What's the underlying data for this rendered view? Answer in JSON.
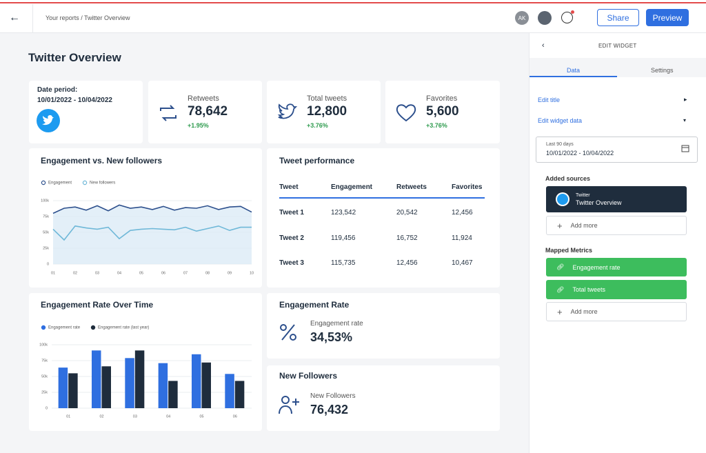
{
  "header": {
    "breadcrumb": "Your reports / Twitter Overview",
    "avatar": "AK",
    "share": "Share",
    "preview": "Preview"
  },
  "title": "Twitter Overview",
  "date_card": {
    "label": "Date period:",
    "range": "10/01/2022 - 10/04/2022"
  },
  "kpis": [
    {
      "label": "Retweets",
      "value": "78,642",
      "change": "+1.95%"
    },
    {
      "label": "Total tweets",
      "value": "12,800",
      "change": "+3.76%"
    },
    {
      "label": "Favorites",
      "value": "5,600",
      "change": "+3.76%"
    }
  ],
  "line_chart": {
    "type": "line",
    "title": "Engagement vs. New followers",
    "categories": [
      "01",
      null,
      "02",
      null,
      "03",
      null,
      "04",
      null,
      "05",
      null,
      "06",
      null,
      "07",
      null,
      "08",
      null,
      "09",
      null,
      "10"
    ],
    "series": [
      {
        "name": "Engagement",
        "color": "#2c4f8c",
        "values": [
          80000,
          88000,
          90000,
          85000,
          92000,
          84000,
          93000,
          88000,
          90000,
          86000,
          91000,
          85000,
          89000,
          88000,
          92000,
          86000,
          90000,
          91000,
          82000
        ]
      },
      {
        "name": "New followers",
        "color": "#6fb8d8",
        "values": [
          55000,
          38000,
          60000,
          57000,
          55000,
          58000,
          40000,
          53000,
          55000,
          56000,
          55000,
          54000,
          58000,
          52000,
          56000,
          60000,
          53000,
          58000,
          58000
        ]
      }
    ],
    "area_color": "#dcebf6",
    "ylim": [
      0,
      100000
    ],
    "yticks": [
      0,
      {
        "value": 25000,
        "label": "25k"
      },
      {
        "value": 50000,
        "label": "50k"
      },
      {
        "value": 75000,
        "label": "75k"
      },
      {
        "value": 100000,
        "label": "100k"
      }
    ],
    "grid": true
  },
  "table": {
    "title": "Tweet performance",
    "header": [
      "Tweet",
      "Engagement",
      "Retweets",
      "Favorites"
    ],
    "rows": [
      [
        "Tweet 1",
        "123,542",
        "20,542",
        "12,456"
      ],
      [
        "Tweet 2",
        "119,456",
        "16,752",
        "11,924"
      ],
      [
        "Tweet 3",
        "115,735",
        "12,456",
        "10,467"
      ]
    ]
  },
  "bar_chart": {
    "type": "bar",
    "title": "Engagement Rate Over Time",
    "categories": [
      "01",
      "02",
      "03",
      "04",
      "05",
      "06"
    ],
    "series": [
      {
        "name": "Engagement rate",
        "color": "#2f6fe0",
        "values": [
          64000,
          91000,
          79000,
          71000,
          85000,
          54000
        ]
      },
      {
        "name": "Engagement rate (last year)",
        "color": "#1f2d3d",
        "values": [
          55000,
          66000,
          91000,
          43000,
          72000,
          43000
        ]
      }
    ],
    "ylim": [
      0,
      100000
    ],
    "yticks": [
      0,
      {
        "value": 25000,
        "label": "25k"
      },
      {
        "value": 50000,
        "label": "50k"
      },
      {
        "value": 75000,
        "label": "75k"
      },
      {
        "value": 100000,
        "label": "100k"
      }
    ],
    "grid": true
  },
  "engagement_rate": {
    "title": "Engagement Rate",
    "label": "Engagement rate",
    "value": "34,53%"
  },
  "new_followers": {
    "title": "New Followers",
    "label": "New Followers",
    "value": "76,432"
  },
  "panel": {
    "heading": "EDIT WIDGET",
    "tabs": [
      "Data",
      "Settings"
    ],
    "edit_title": "Edit title",
    "edit_data": "Edit widget data",
    "date_hint": "Last 90 days",
    "date_range": "10/01/2022 - 10/04/2022",
    "sources_heading": "Added sources",
    "source": {
      "name": "Twitter",
      "report": "Twitter Overview"
    },
    "add_more": "Add more",
    "metrics_heading": "Mapped Metrics",
    "metrics": [
      "Engagement rate",
      "Total tweets"
    ],
    "add_more_metrics": "Add more"
  }
}
